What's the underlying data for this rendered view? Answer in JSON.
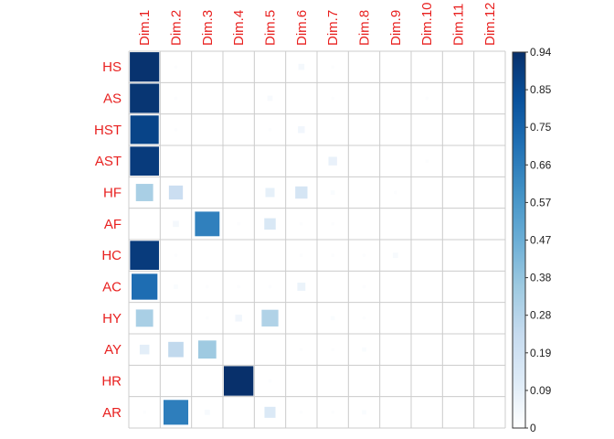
{
  "chart_data": {
    "type": "heatmap",
    "rows": [
      "HS",
      "AS",
      "HST",
      "AST",
      "HF",
      "AF",
      "HC",
      "AC",
      "HY",
      "AY",
      "HR",
      "AR"
    ],
    "columns": [
      "Dim.1",
      "Dim.2",
      "Dim.3",
      "Dim.4",
      "Dim.5",
      "Dim.6",
      "Dim.7",
      "Dim.8",
      "Dim.9",
      "Dim.10",
      "Dim.11",
      "Dim.12"
    ],
    "values": [
      [
        0.93,
        0.01,
        0.0,
        0.0,
        0.0,
        0.04,
        0.01,
        0.0,
        0.0,
        0.0,
        0.0,
        0.0
      ],
      [
        0.92,
        0.01,
        0.0,
        0.0,
        0.03,
        0.0,
        0.01,
        0.0,
        0.0,
        0.01,
        0.0,
        0.0
      ],
      [
        0.87,
        0.01,
        0.0,
        0.0,
        0.01,
        0.05,
        0.0,
        0.0,
        0.0,
        0.0,
        0.0,
        0.0
      ],
      [
        0.9,
        0.0,
        0.0,
        0.0,
        0.0,
        0.0,
        0.08,
        0.0,
        0.0,
        0.01,
        0.0,
        0.0
      ],
      [
        0.32,
        0.21,
        0.0,
        0.0,
        0.09,
        0.16,
        0.02,
        0.0,
        0.01,
        0.0,
        0.0,
        0.0
      ],
      [
        0.0,
        0.04,
        0.65,
        0.01,
        0.14,
        0.01,
        0.01,
        0.0,
        0.0,
        0.0,
        0.0,
        0.0
      ],
      [
        0.9,
        0.01,
        0.0,
        0.0,
        0.0,
        0.01,
        0.01,
        0.01,
        0.03,
        0.0,
        0.0,
        0.0
      ],
      [
        0.72,
        0.02,
        0.01,
        0.01,
        0.01,
        0.07,
        0.0,
        0.01,
        0.0,
        0.0,
        0.0,
        0.0
      ],
      [
        0.32,
        0.0,
        0.01,
        0.05,
        0.3,
        0.0,
        0.02,
        0.01,
        0.0,
        0.0,
        0.0,
        0.0
      ],
      [
        0.1,
        0.25,
        0.35,
        0.0,
        0.0,
        0.01,
        0.01,
        0.02,
        0.0,
        0.0,
        0.0,
        0.0
      ],
      [
        0.0,
        0.0,
        0.0,
        0.94,
        0.01,
        0.0,
        0.0,
        0.0,
        0.0,
        0.0,
        0.0,
        0.0
      ],
      [
        0.01,
        0.66,
        0.03,
        0.0,
        0.13,
        0.01,
        0.01,
        0.02,
        0.0,
        0.0,
        0.0,
        0.0
      ]
    ],
    "colorbar": {
      "min": 0,
      "max": 0.94,
      "ticks": [
        "0.94",
        "0.85",
        "0.75",
        "0.66",
        "0.57",
        "0.47",
        "0.38",
        "0.28",
        "0.19",
        "0.09",
        "0"
      ]
    },
    "colorscale": [
      "#ffffff",
      "#deebf7",
      "#c6dbef",
      "#9ecae1",
      "#6baed6",
      "#4292c6",
      "#2171b5",
      "#08519c",
      "#08306b"
    ],
    "label_color": "#e8201f",
    "grid": true,
    "cell_size_scaled_by_value": true,
    "legend_position": "right"
  }
}
